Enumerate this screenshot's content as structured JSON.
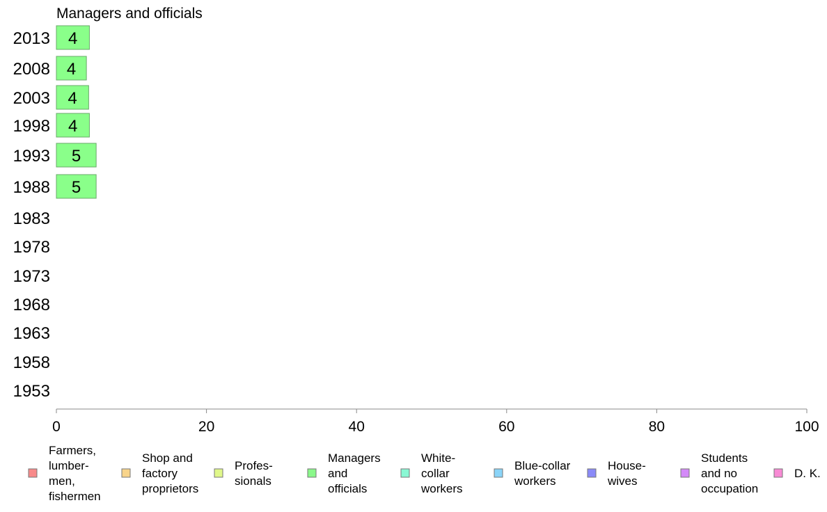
{
  "chart_data": {
    "type": "bar",
    "orientation": "horizontal",
    "title": "Managers and officials",
    "categories": [
      "2013",
      "2008",
      "2003",
      "1998",
      "1993",
      "1988",
      "1983",
      "1978",
      "1973",
      "1968",
      "1963",
      "1958",
      "1953"
    ],
    "series": [
      {
        "name": "Managers and officials",
        "color": "#8aff8a",
        "values": [
          4.4,
          4.0,
          4.3,
          4.4,
          5.3,
          5.3,
          null,
          null,
          null,
          null,
          null,
          null,
          null
        ],
        "labels": [
          "4",
          "4",
          "4",
          "4",
          "5",
          "5",
          "",
          "",
          "",
          "",
          "",
          "",
          ""
        ]
      }
    ],
    "xlim": [
      0,
      100
    ],
    "xticks": [
      "0",
      "20",
      "40",
      "60",
      "80",
      "100"
    ],
    "grid": false,
    "legend": {
      "position": "bottom",
      "items": [
        {
          "lines": [
            "Farmers,",
            "lumber-",
            "men,",
            "fishermen"
          ],
          "color": "#f88a8a"
        },
        {
          "lines": [
            "Shop and",
            "factory",
            "proprietors"
          ],
          "color": "#f8d48a"
        },
        {
          "lines": [
            "Profes-",
            "sionals"
          ],
          "color": "#e0f88a"
        },
        {
          "lines": [
            "Managers",
            "and",
            "officials"
          ],
          "color": "#8af88a"
        },
        {
          "lines": [
            "White-",
            "collar",
            "workers"
          ],
          "color": "#8af8d4"
        },
        {
          "lines": [
            "Blue-collar",
            "workers"
          ],
          "color": "#8ad4f8"
        },
        {
          "lines": [
            "House-",
            "wives"
          ],
          "color": "#8a8af8"
        },
        {
          "lines": [
            "Students",
            "and no",
            "occupation"
          ],
          "color": "#d48af8"
        },
        {
          "lines": [
            "D. K."
          ],
          "color": "#f88ad4"
        }
      ]
    }
  }
}
